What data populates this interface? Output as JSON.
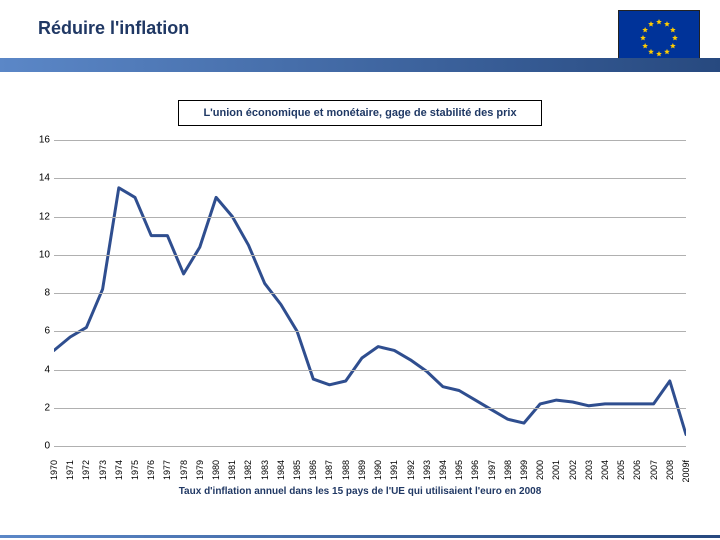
{
  "colors": {
    "title": "#203864",
    "bar_gradient_left": "#5b87c7",
    "bar_gradient_right": "#27497f",
    "flag_bg": "#003399",
    "flag_star": "#ffcc00",
    "subtitle": "#1f3864",
    "gridline": "#b0b0b0",
    "axis_text": "#000000",
    "series": "#2f4e8f",
    "footnote": "#203864",
    "background": "#ffffff"
  },
  "header": {
    "title": "Réduire l'inflation",
    "title_fontsize": 18,
    "subtitle": "L'union économique et monétaire, gage de stabilité des prix",
    "subtitle_fontsize": 11
  },
  "chart": {
    "type": "line",
    "ylim": [
      0,
      16
    ],
    "ytick_step": 2,
    "yticks": [
      0,
      2,
      4,
      6,
      8,
      10,
      12,
      14,
      16
    ],
    "ylabel_fontsize": 10,
    "xlabel_fontsize": 9,
    "line_width": 3,
    "grid": true,
    "categories": [
      "1970",
      "1971",
      "1972",
      "1973",
      "1974",
      "1975",
      "1976",
      "1977",
      "1978",
      "1979",
      "1980",
      "1981",
      "1982",
      "1983",
      "1984",
      "1985",
      "1986",
      "1987",
      "1988",
      "1989",
      "1990",
      "1991",
      "1992",
      "1993",
      "1994",
      "1995",
      "1996",
      "1997",
      "1998",
      "1999",
      "2000",
      "2001",
      "2002",
      "2003",
      "2004",
      "2005",
      "2006",
      "2007",
      "2008",
      "2009f"
    ],
    "values": [
      5.0,
      5.7,
      6.2,
      8.2,
      13.5,
      13.0,
      11.0,
      11.0,
      9.0,
      10.4,
      13.0,
      12.0,
      10.5,
      8.5,
      7.4,
      6.0,
      3.5,
      3.2,
      3.4,
      4.6,
      5.2,
      5.0,
      4.5,
      3.9,
      3.1,
      2.9,
      2.4,
      1.9,
      1.4,
      1.2,
      2.2,
      2.4,
      2.3,
      2.1,
      2.2,
      2.2,
      2.2,
      2.2,
      3.4,
      0.6
    ]
  },
  "footnote": {
    "text": "Taux d'inflation annuel dans les 15 pays de l'UE qui utilisaient l'euro en 2008",
    "fontsize": 10
  }
}
